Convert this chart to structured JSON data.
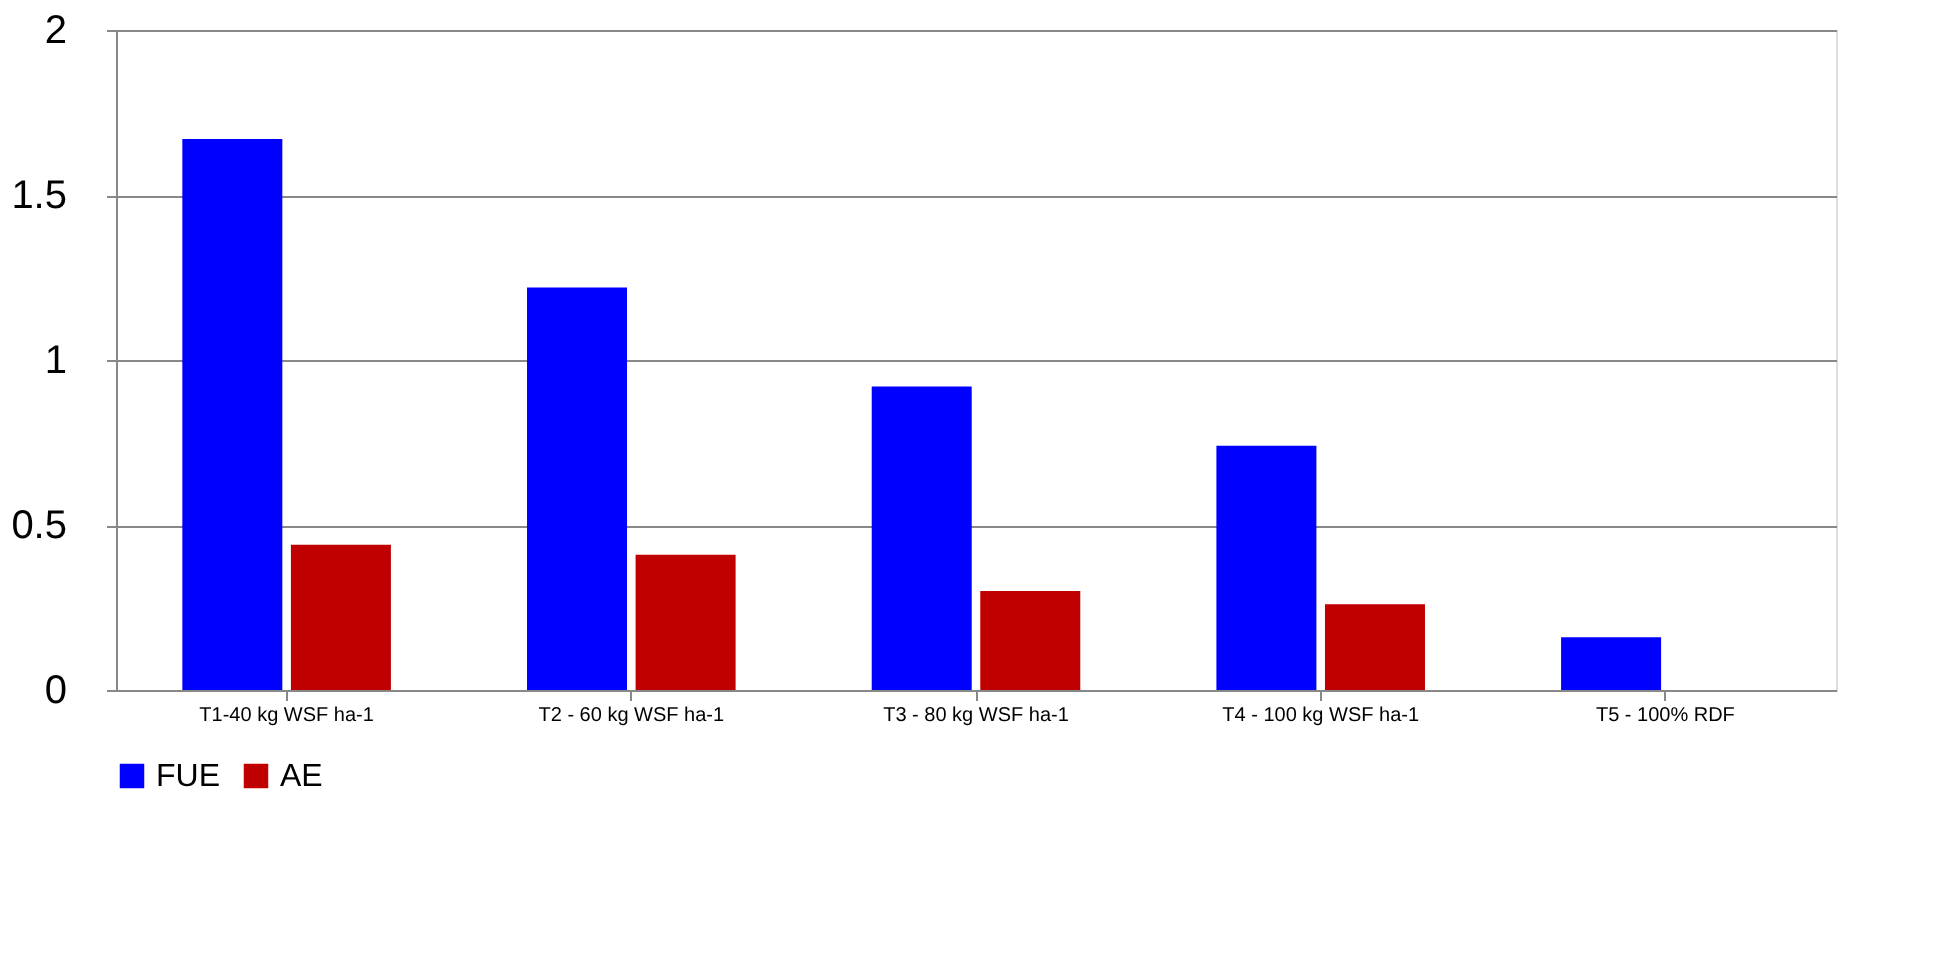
{
  "chart_data": {
    "type": "bar",
    "categories": [
      "T1-40 kg WSF ha-1",
      "T2 - 60 kg WSF ha-1",
      "T3 - 80 kg WSF ha-1",
      "T4 - 100 kg WSF ha-1",
      "T5 - 100% RDF"
    ],
    "series": [
      {
        "name": "FUE",
        "color": "#0000ff",
        "values": [
          1.67,
          1.22,
          0.92,
          0.74,
          0.16
        ]
      },
      {
        "name": "AE",
        "color": "#c00000",
        "values": [
          0.44,
          0.41,
          0.3,
          0.26,
          0
        ]
      }
    ],
    "ylim": [
      0,
      2
    ],
    "yticks": [
      0,
      0.5,
      1,
      1.5,
      2
    ],
    "grid": "y",
    "legend": "bottom"
  }
}
